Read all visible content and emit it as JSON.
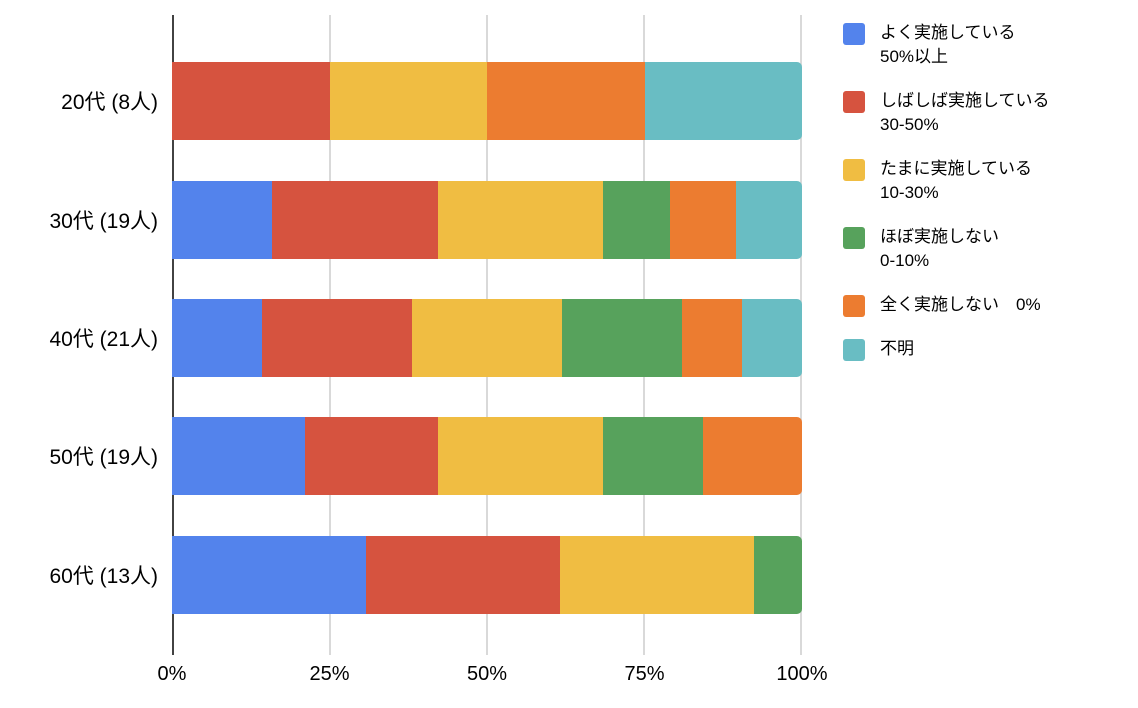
{
  "chart_data": {
    "type": "bar",
    "orientation": "horizontal",
    "stacked": true,
    "title": "",
    "xlabel": "",
    "ylabel": "",
    "categories": [
      "20代 (8人)",
      "30代 (19人)",
      "40代 (21人)",
      "50代 (19人)",
      "60代 (13人)"
    ],
    "series": [
      {
        "name": "よく実施している 50%以上",
        "legend_lines": [
          "よく実施している",
          "50%以上"
        ],
        "color": "#5383EC",
        "values": [
          0,
          15.8,
          14.3,
          21.1,
          30.8
        ]
      },
      {
        "name": "しばしば実施している 30-50%",
        "legend_lines": [
          "しばしば実施している",
          "30-50%"
        ],
        "color": "#D6533F",
        "values": [
          25,
          26.3,
          23.8,
          21.1,
          30.8
        ]
      },
      {
        "name": "たまに実施している 10-30%",
        "legend_lines": [
          "たまに実施している",
          "10-30%"
        ],
        "color": "#F0BD42",
        "values": [
          25,
          26.3,
          23.8,
          26.3,
          30.8
        ]
      },
      {
        "name": "ほぼ実施しない 0-10%",
        "legend_lines": [
          "ほぼ実施しない",
          "0-10%"
        ],
        "color": "#57A25C",
        "values": [
          0,
          10.5,
          19.0,
          15.8,
          7.7
        ]
      },
      {
        "name": "全く実施しない　0%",
        "legend_lines": [
          "全く実施しない　0%"
        ],
        "color": "#EC7C30",
        "values": [
          25,
          10.5,
          9.5,
          15.8,
          0
        ]
      },
      {
        "name": "不明",
        "legend_lines": [
          "不明"
        ],
        "color": "#69BDC3",
        "values": [
          25,
          10.5,
          9.5,
          0,
          0
        ]
      }
    ],
    "x_axis": {
      "ticks": [
        "0%",
        "25%",
        "50%",
        "75%",
        "100%"
      ],
      "tick_values": [
        0,
        25,
        50,
        75,
        100
      ],
      "min": 0,
      "max": 100
    },
    "grid": true,
    "legend_position": "right"
  },
  "colors": {
    "background": "#FFFFFF",
    "gridline": "#D9D9D9",
    "axis_line": "#424242",
    "label_text": "#000000"
  }
}
